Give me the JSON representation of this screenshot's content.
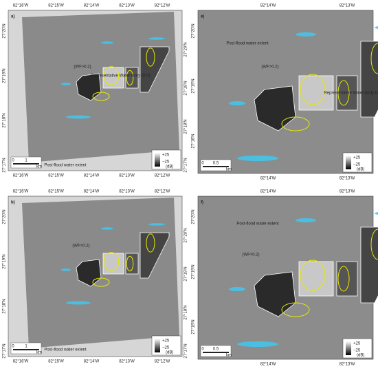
{
  "panels": [
    {
      "label": "a)",
      "top_lon": [
        "82°16'W",
        "82°15'W",
        "82°14'W",
        "82°13'W",
        "82°12'W"
      ],
      "bottom_lon": [
        "82°16'W",
        "82°15'W",
        "82°14'W",
        "82°13'W",
        "82°12'W"
      ],
      "left_lat": [
        "27°20'N",
        "27°19'N",
        "27°18'N",
        "27°17'N"
      ],
      "right_lat": [
        "27°20'N",
        "27°19'N",
        "27°18'N",
        "27°17'N"
      ],
      "annotations": [
        {
          "text": "Representative Water body ID=3"
        },
        {
          "text": "(WF>0.2)"
        },
        {
          "text": "Post-flood water extent"
        }
      ],
      "legend": {
        "max": "+25",
        "min": "−25",
        "unit": "(dB)"
      },
      "scale": {
        "start": "0",
        "end": "1",
        "unit": "km"
      }
    },
    {
      "label": "e)",
      "top_lon": [
        "82°14'W",
        "82°13'W"
      ],
      "bottom_lon": [
        "82°14'W",
        "82°13'W"
      ],
      "left_lat": [
        "27°20'N",
        "27°19'N",
        "27°18'N"
      ],
      "annotations": [
        {
          "text": "Post-flood water extent"
        },
        {
          "text": "(WF>0.2)"
        },
        {
          "text": "Representative Water body ID=3"
        }
      ],
      "legend": {
        "max": "+25",
        "min": "−25",
        "unit": "(dB)"
      },
      "scale": {
        "start": "0",
        "end": "0.5",
        "unit": "km"
      }
    },
    {
      "label": "b)",
      "top_lon": [
        "82°16'W",
        "82°15'W",
        "82°14'W",
        "82°13'W",
        "82°12'W"
      ],
      "bottom_lon": [
        "82°16'W",
        "82°15'W",
        "82°14'W",
        "82°13'W",
        "82°12'W"
      ],
      "left_lat": [
        "27°20'N",
        "27°19'N",
        "27°18'N",
        "27°17'N"
      ],
      "right_lat": [
        "27°20'N",
        "27°19'N",
        "27°18'N",
        "27°17'N"
      ],
      "annotations": [
        {
          "text": "(WF>0.2)"
        },
        {
          "text": "Post-flood water extent"
        }
      ],
      "legend": {
        "max": "+25",
        "min": "−25",
        "unit": "(dB)"
      },
      "scale": {
        "start": "0",
        "end": "1",
        "unit": "km"
      }
    },
    {
      "label": "f)",
      "top_lon": [
        "82°14'W",
        "82°13'W"
      ],
      "bottom_lon": [
        "82°14'W",
        "82°13'W"
      ],
      "left_lat": [
        "27°20'N",
        "27°19'N",
        "27°18'N"
      ],
      "annotations": [
        {
          "text": "Post-flood water extent"
        },
        {
          "text": "(WF>0.2)"
        }
      ],
      "legend": {
        "max": "+25",
        "min": "−25",
        "unit": "(dB)"
      },
      "scale": {
        "start": "0",
        "end": "0.5",
        "unit": "km"
      }
    }
  ]
}
